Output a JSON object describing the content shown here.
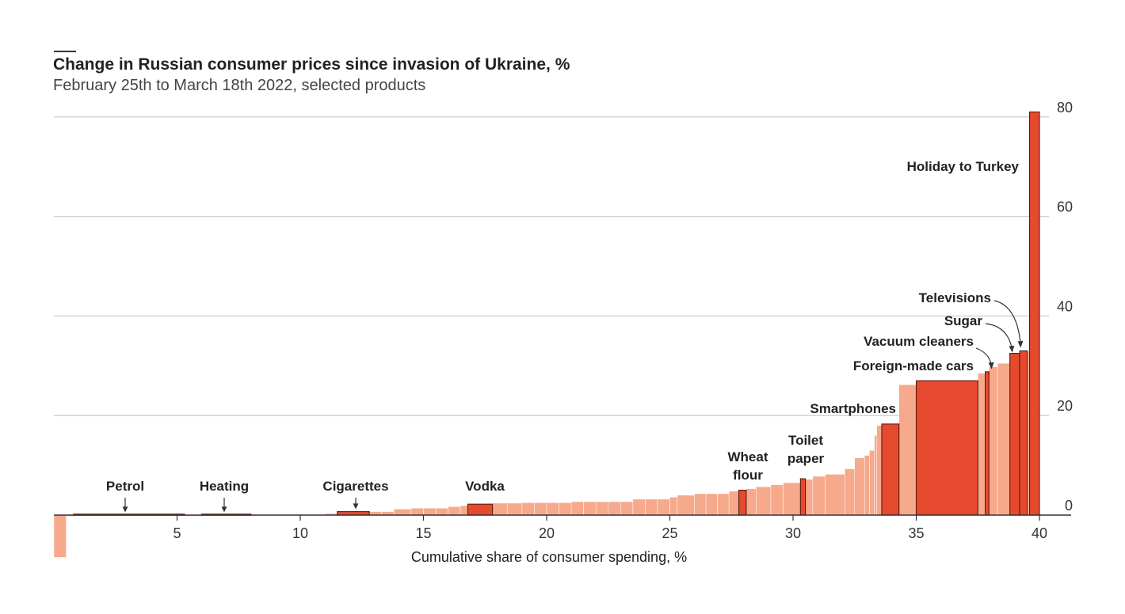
{
  "header": {
    "title": "Change in Russian consumer prices since invasion of Ukraine, %",
    "subtitle": "February 25th to March 18th 2022, selected products"
  },
  "colors": {
    "highlight": "#e64a2e",
    "other": "#f7a98c",
    "grid": "#d0d0d0",
    "axis": "#333333"
  },
  "chart_data": {
    "type": "bar",
    "variant": "variable-width (Marimekko-style) ranked bars",
    "title": "Change in Russian consumer prices since invasion of Ukraine, %",
    "subtitle": "February 25th to March 18th 2022, selected products",
    "xlabel": "Cumulative share of consumer spending, %",
    "ylabel": "",
    "xlim": [
      0,
      40.5
    ],
    "ylim": [
      -9,
      80
    ],
    "xticks": [
      5,
      10,
      15,
      20,
      25,
      30,
      35,
      40
    ],
    "yticks": [
      0,
      20,
      40,
      60,
      80
    ],
    "y_axis_position": "right",
    "grid": true,
    "highlighted": [
      {
        "label": "Petrol",
        "x0": 0.8,
        "x1": 5.3,
        "value": 0.2
      },
      {
        "label": "Heating",
        "x0": 6.0,
        "x1": 8.0,
        "value": 0.2
      },
      {
        "label": "Cigarettes",
        "x0": 11.5,
        "x1": 12.8,
        "value": 0.7
      },
      {
        "label": "Vodka",
        "x0": 16.8,
        "x1": 17.8,
        "value": 2.2
      },
      {
        "label": "Wheat flour",
        "x0": 27.8,
        "x1": 28.1,
        "value": 5.0
      },
      {
        "label": "Toilet paper",
        "x0": 30.3,
        "x1": 30.5,
        "value": 7.3
      },
      {
        "label": "Smartphones",
        "x0": 33.6,
        "x1": 34.3,
        "value": 18.3
      },
      {
        "label": "Foreign-made cars",
        "x0": 35.0,
        "x1": 37.5,
        "value": 27.0
      },
      {
        "label": "Vacuum cleaners",
        "x0": 37.8,
        "x1": 37.95,
        "value": 28.8
      },
      {
        "label": "Sugar",
        "x0": 38.8,
        "x1": 39.2,
        "value": 32.5
      },
      {
        "label": "Televisions",
        "x0": 39.2,
        "x1": 39.5,
        "value": 33.0
      },
      {
        "label": "Holiday to Turkey",
        "x0": 39.6,
        "x1": 40.0,
        "value": 81.0
      }
    ],
    "other_steps": [
      [
        0.0,
        0.5,
        -8.5
      ],
      [
        0.5,
        0.8,
        -0.2
      ],
      [
        5.3,
        6.0,
        -0.1
      ],
      [
        8.0,
        11.0,
        0.1
      ],
      [
        11.0,
        11.5,
        0.3
      ],
      [
        12.8,
        13.8,
        0.7
      ],
      [
        13.8,
        14.5,
        1.2
      ],
      [
        14.5,
        16.0,
        1.4
      ],
      [
        16.0,
        16.5,
        1.7
      ],
      [
        16.5,
        16.8,
        1.9
      ],
      [
        17.8,
        19.0,
        2.4
      ],
      [
        19.0,
        21.0,
        2.5
      ],
      [
        21.0,
        23.5,
        2.7
      ],
      [
        23.5,
        25.0,
        3.2
      ],
      [
        25.0,
        25.3,
        3.6
      ],
      [
        25.3,
        26.0,
        4.0
      ],
      [
        26.0,
        27.4,
        4.3
      ],
      [
        27.4,
        27.8,
        4.8
      ],
      [
        28.1,
        28.5,
        5.3
      ],
      [
        28.5,
        29.1,
        5.7
      ],
      [
        29.1,
        29.6,
        6.1
      ],
      [
        29.6,
        30.3,
        6.5
      ],
      [
        30.5,
        30.8,
        7.2
      ],
      [
        30.8,
        31.3,
        7.8
      ],
      [
        31.3,
        32.1,
        8.2
      ],
      [
        32.1,
        32.5,
        9.3
      ],
      [
        32.5,
        32.9,
        11.5
      ],
      [
        32.9,
        33.1,
        12.0
      ],
      [
        33.1,
        33.3,
        13.0
      ],
      [
        33.3,
        33.4,
        16.0
      ],
      [
        33.4,
        33.6,
        18.0
      ],
      [
        34.3,
        35.0,
        26.2
      ],
      [
        37.5,
        37.8,
        28.5
      ],
      [
        37.95,
        38.3,
        29.8
      ],
      [
        38.3,
        38.8,
        30.5
      ],
      [
        39.5,
        39.6,
        33.0
      ]
    ]
  },
  "axes": {
    "x_tick_labels": [
      "5",
      "10",
      "15",
      "20",
      "25",
      "30",
      "35",
      "40"
    ],
    "y_tick_labels": [
      "0",
      "20",
      "40",
      "60",
      "80"
    ]
  },
  "labels": {
    "petrol": "Petrol",
    "heating": "Heating",
    "cigarettes": "Cigarettes",
    "vodka": "Vodka",
    "wheat_flour_1": "Wheat",
    "wheat_flour_2": "flour",
    "toilet_paper_1": "Toilet",
    "toilet_paper_2": "paper",
    "smartphones": "Smartphones",
    "foreign_cars": "Foreign-made cars",
    "vacuum_cleaners": "Vacuum cleaners",
    "sugar": "Sugar",
    "televisions": "Televisions",
    "holiday_turkey": "Holiday to Turkey"
  }
}
